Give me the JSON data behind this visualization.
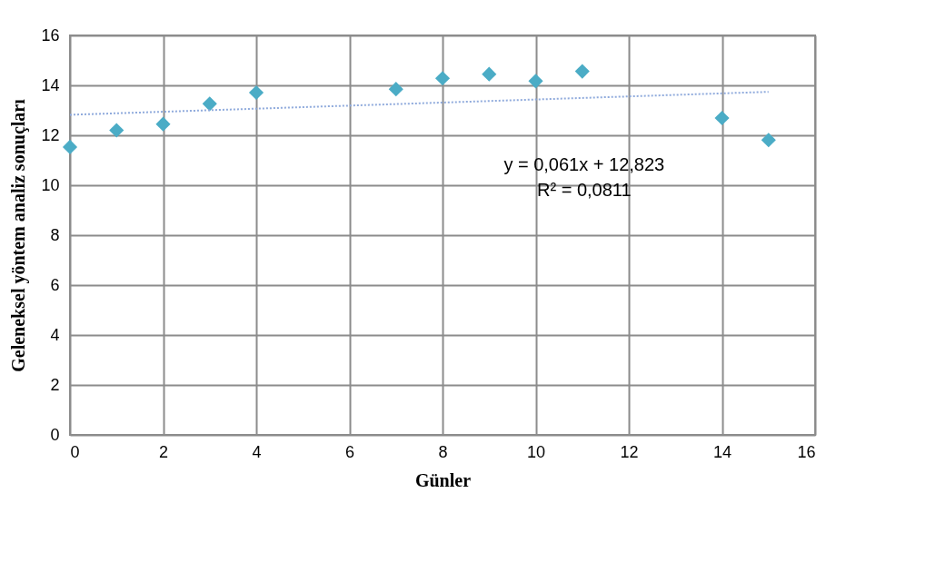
{
  "chart_data": {
    "type": "scatter",
    "xlabel": "Günler",
    "ylabel": "Geleneksel yöntem analiz sonuçları",
    "x": [
      0,
      1,
      2,
      3,
      4,
      7,
      8,
      9,
      10,
      11,
      14,
      15
    ],
    "series": [
      {
        "color": "#4bacc6",
        "marker": "diamond",
        "values": [
          11.53,
          12.2,
          12.45,
          13.26,
          13.71,
          13.85,
          14.28,
          14.45,
          14.17,
          14.56,
          12.69,
          11.81
        ]
      },
      {
        "type": "line",
        "color": "#8faadc",
        "line_style": "dotted",
        "x": [
          0,
          15
        ],
        "values": [
          12.82,
          13.74
        ]
      }
    ],
    "annotations": [
      "y = 0,061x + 12,823",
      "R² = 0,0811"
    ],
    "xlim": [
      0,
      16
    ],
    "xticks": [
      0,
      2,
      4,
      6,
      8,
      10,
      12,
      14,
      16
    ],
    "ylim": [
      0,
      16
    ],
    "yticks": [
      0,
      2,
      4,
      6,
      8,
      10,
      12,
      14,
      16
    ],
    "grid": true,
    "legend": false
  }
}
